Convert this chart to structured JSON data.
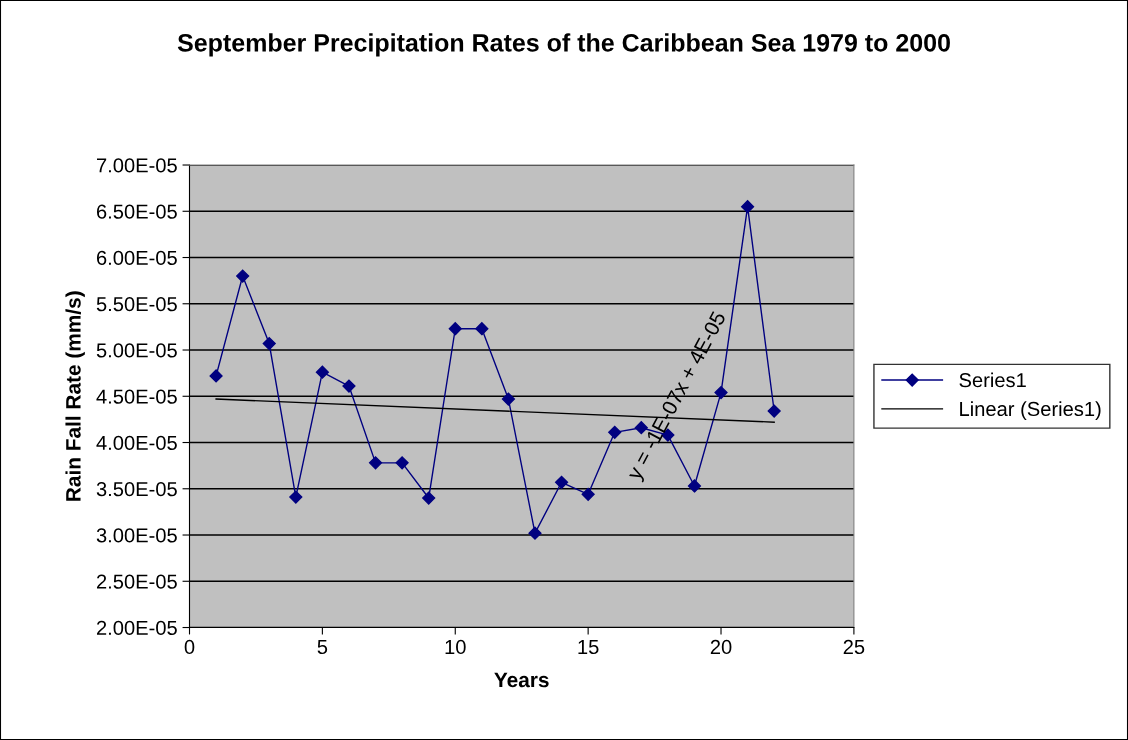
{
  "chart_data": {
    "type": "line",
    "title": "September Precipitation Rates of the Caribbean Sea 1979 to 2000",
    "xlabel": "Years",
    "ylabel": "Rain Fall Rate (mm/s)",
    "series": [
      {
        "name": "Series1",
        "color": "#000080",
        "marker": "diamond",
        "x": [
          1,
          2,
          3,
          4,
          5,
          6,
          7,
          8,
          9,
          10,
          11,
          12,
          13,
          14,
          15,
          16,
          17,
          18,
          19,
          20,
          21,
          22
        ],
        "values": [
          4.72e-05,
          5.8e-05,
          5.07e-05,
          3.41e-05,
          4.76e-05,
          4.61e-05,
          3.78e-05,
          3.78e-05,
          3.4e-05,
          5.23e-05,
          5.23e-05,
          4.47e-05,
          3.02e-05,
          3.57e-05,
          3.44e-05,
          4.11e-05,
          4.16e-05,
          4.08e-05,
          3.53e-05,
          4.54e-05,
          6.55e-05,
          4.34e-05
        ]
      },
      {
        "name": "Linear (Series1)",
        "color": "#000000",
        "marker": "none",
        "x": [
          1,
          22
        ],
        "values": [
          4.47e-05,
          4.22e-05
        ]
      }
    ],
    "xlim": [
      0,
      25
    ],
    "xticks": [
      0,
      5,
      10,
      15,
      20,
      25
    ],
    "ylim": [
      2e-05,
      7e-05
    ],
    "yticks": [
      {
        "value": 2e-05,
        "label": "2.00E-05"
      },
      {
        "value": 2.5e-05,
        "label": "2.50E-05"
      },
      {
        "value": 3e-05,
        "label": "3.00E-05"
      },
      {
        "value": 3.5e-05,
        "label": "3.50E-05"
      },
      {
        "value": 4e-05,
        "label": "4.00E-05"
      },
      {
        "value": 4.5e-05,
        "label": "4.50E-05"
      },
      {
        "value": 5e-05,
        "label": "5.00E-05"
      },
      {
        "value": 5.5e-05,
        "label": "5.50E-05"
      },
      {
        "value": 6e-05,
        "label": "6.00E-05"
      },
      {
        "value": 6.5e-05,
        "label": "6.50E-05"
      },
      {
        "value": 7e-05,
        "label": "7.00E-05"
      }
    ],
    "grid": "y",
    "legend": "right",
    "annotations": [
      "y = -1E-07x + 4E-05"
    ]
  }
}
